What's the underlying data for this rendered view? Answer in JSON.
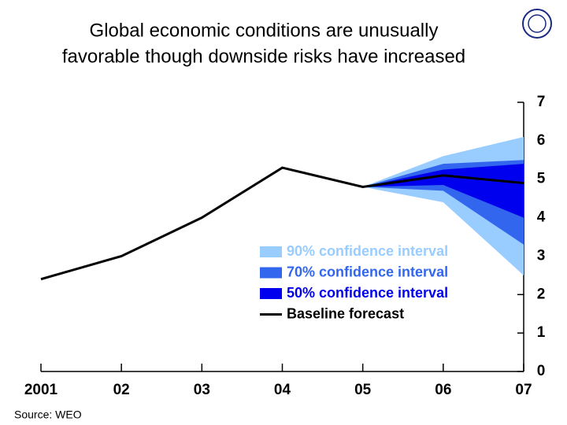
{
  "chart_data": {
    "type": "fan",
    "title": [
      "Global economic conditions are unusually",
      "favorable though downside risks have increased"
    ],
    "source": "Source: WEO",
    "categories": [
      "2001",
      "02",
      "03",
      "04",
      "05",
      "06",
      "07"
    ],
    "ylim": [
      0,
      7
    ],
    "yticks": [
      0,
      1,
      2,
      3,
      4,
      5,
      6,
      7
    ],
    "intervals": [
      {
        "name": "90% confidence interval",
        "color": "#99ccff",
        "lower": [
          null,
          null,
          null,
          null,
          4.8,
          4.4,
          2.5
        ],
        "upper": [
          null,
          null,
          null,
          null,
          4.8,
          5.6,
          6.1
        ]
      },
      {
        "name": "70% confidence interval",
        "color": "#3366ee",
        "lower": [
          null,
          null,
          null,
          null,
          4.8,
          4.7,
          3.3
        ],
        "upper": [
          null,
          null,
          null,
          null,
          4.8,
          5.4,
          5.5
        ]
      },
      {
        "name": "50% confidence interval",
        "color": "#0000ee",
        "lower": [
          null,
          null,
          null,
          null,
          4.8,
          4.85,
          4.0
        ],
        "upper": [
          null,
          null,
          null,
          null,
          4.8,
          5.25,
          5.4
        ]
      }
    ],
    "baseline": {
      "name": "Baseline forecast",
      "color": "#000000",
      "values": [
        2.4,
        3.0,
        4.0,
        5.3,
        4.8,
        5.1,
        4.9
      ]
    }
  }
}
